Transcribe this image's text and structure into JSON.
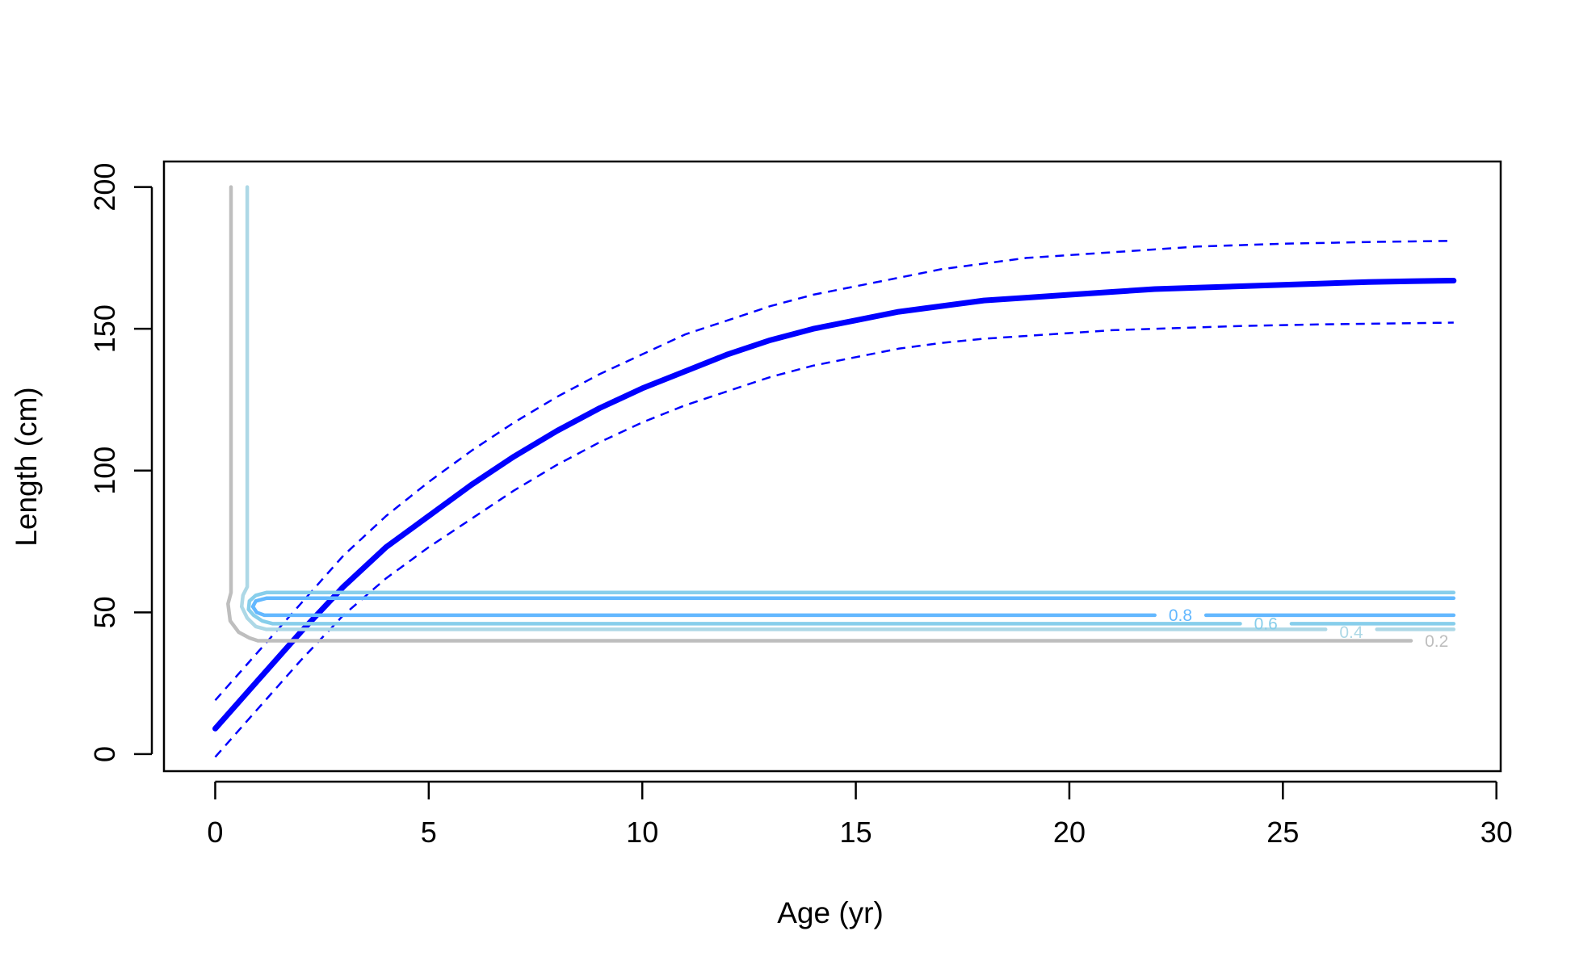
{
  "chart_data": {
    "type": "line",
    "xlabel": "Age (yr)",
    "ylabel": "Length (cm)",
    "xlim": [
      -1.2,
      30.1
    ],
    "ylim": [
      -6,
      209
    ],
    "xticks": [
      0,
      5,
      10,
      15,
      20,
      25,
      30
    ],
    "yticks": [
      0,
      50,
      100,
      150,
      200
    ],
    "grid": false,
    "colors": {
      "main": "#0000ff",
      "gray": "#bebebe",
      "light": "#add8e6",
      "mid": "#87ceeb",
      "dark": "#63b8ff"
    },
    "series": [
      {
        "x": [
          0,
          1,
          2,
          3,
          4,
          5,
          6,
          7,
          8,
          9,
          10,
          11,
          12,
          13,
          14,
          15,
          16,
          17,
          18,
          19,
          20,
          21,
          22,
          23,
          24,
          25,
          26,
          27,
          28,
          29
        ],
        "values": [
          9,
          26,
          43,
          59,
          73,
          84,
          95,
          105,
          114,
          122,
          129,
          135,
          141,
          146,
          150,
          153,
          156,
          158,
          160,
          161,
          162,
          163,
          164,
          164.5,
          165,
          165.5,
          166,
          166.5,
          166.8,
          167
        ],
        "color": "#0000ff",
        "style": "solid",
        "width": 7
      },
      {
        "x": [
          0,
          1,
          2,
          3,
          4,
          5,
          6,
          7,
          8,
          9,
          10,
          11,
          12,
          13,
          14,
          15,
          16,
          17,
          18,
          19,
          20,
          21,
          22,
          23,
          24,
          25,
          26,
          27,
          28,
          29
        ],
        "values": [
          19,
          36,
          53,
          70,
          84,
          96,
          107,
          117,
          126,
          134,
          141,
          148,
          153,
          158,
          162,
          165,
          168,
          171,
          173,
          175,
          176,
          177,
          178,
          179,
          179.5,
          180,
          180.3,
          180.6,
          180.8,
          181
        ],
        "color": "#0000ff",
        "style": "dashed",
        "width": 2.5
      },
      {
        "x": [
          0,
          1,
          2,
          3,
          4,
          5,
          6,
          7,
          8,
          9,
          10,
          11,
          12,
          13,
          14,
          15,
          16,
          17,
          18,
          19,
          20,
          21,
          22,
          23,
          24,
          25,
          26,
          27,
          28,
          29
        ],
        "values": [
          -1,
          16,
          33,
          49,
          62,
          73,
          83,
          93,
          102,
          110,
          117,
          123,
          128,
          133,
          137,
          140,
          143,
          145,
          146.5,
          147.5,
          148.5,
          149.5,
          150,
          150.5,
          151,
          151.3,
          151.6,
          151.8,
          152,
          152.2
        ],
        "color": "#0000ff",
        "style": "dashed",
        "width": 2.5
      },
      {
        "x": [
          0.37,
          0.37,
          0.3,
          0.35,
          0.55,
          0.8,
          1.0,
          28
        ],
        "values": [
          200,
          57,
          53,
          47,
          43,
          41,
          40,
          40
        ],
        "color": "#bebebe",
        "style": "solid",
        "width": 4.5
      },
      {
        "x": [
          0.75,
          0.75,
          0.65,
          0.62,
          0.75,
          0.95,
          1.2,
          26
        ],
        "values": [
          200,
          59,
          56,
          52,
          48,
          45,
          44,
          44
        ],
        "color": "#add8e6",
        "style": "solid",
        "width": 4.5
      },
      {
        "x": [
          29,
          1.2,
          0.95,
          0.8,
          0.78,
          0.9,
          1.1,
          1.35,
          24
        ],
        "values": [
          57,
          57,
          56,
          54,
          51,
          49,
          47,
          46,
          46
        ],
        "color": "#87ceeb",
        "style": "solid",
        "width": 4.5
      },
      {
        "x": [
          29,
          1.2,
          0.95,
          0.88,
          0.97,
          1.15,
          22
        ],
        "values": [
          55,
          55,
          54,
          52,
          50,
          49,
          49
        ],
        "color": "#63b8ff",
        "style": "solid",
        "width": 4.5
      },
      {
        "x": [
          29,
          27.2
        ],
        "values": [
          44,
          44
        ],
        "color": "#add8e6",
        "style": "solid",
        "width": 4.5
      },
      {
        "x": [
          29,
          25.2
        ],
        "values": [
          46,
          46
        ],
        "color": "#87ceeb",
        "style": "solid",
        "width": 4.5
      },
      {
        "x": [
          29,
          23.2
        ],
        "values": [
          49,
          49
        ],
        "color": "#63b8ff",
        "style": "solid",
        "width": 4.5
      }
    ],
    "annotations": [
      {
        "text": "0.8",
        "x": 22.6,
        "y": 48.5,
        "color": "#63b8ff"
      },
      {
        "text": "0.6",
        "x": 24.6,
        "y": 45.5,
        "color": "#87ceeb"
      },
      {
        "text": "0.4",
        "x": 26.6,
        "y": 42.5,
        "color": "#add8e6"
      },
      {
        "text": "0.2",
        "x": 28.6,
        "y": 39.5,
        "color": "#bebebe"
      }
    ]
  }
}
